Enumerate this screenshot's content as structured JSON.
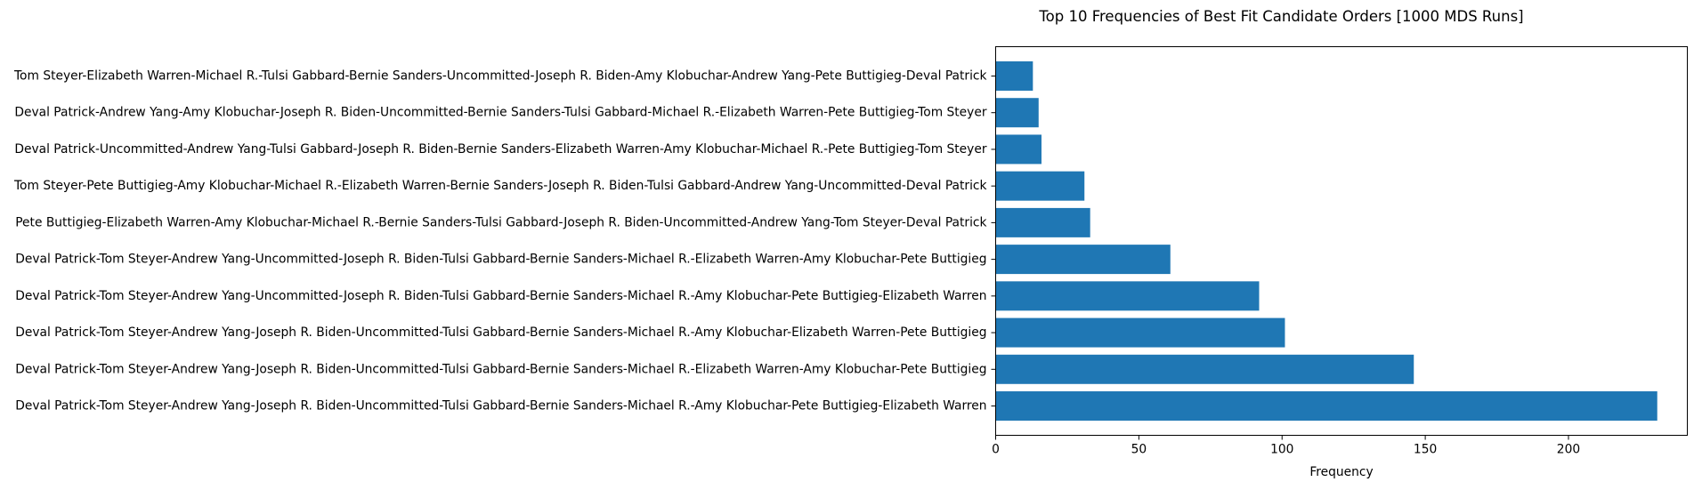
{
  "chart_data": {
    "type": "bar",
    "orientation": "horizontal",
    "title": "Top 10 Frequencies of Best Fit Candidate Orders [1000 MDS Runs]",
    "xlabel": "Frequency",
    "ylabel": "",
    "xlim": [
      0,
      241.5
    ],
    "xticks": [
      0,
      50,
      100,
      150,
      200
    ],
    "grid": false,
    "bar_color": "#1f77b4",
    "categories": [
      "Deval Patrick-Tom Steyer-Andrew Yang-Joseph R. Biden-Uncommitted-Tulsi Gabbard-Bernie Sanders-Michael R.-Amy Klobuchar-Pete Buttigieg-Elizabeth Warren",
      "Deval Patrick-Tom Steyer-Andrew Yang-Joseph R. Biden-Uncommitted-Tulsi Gabbard-Bernie Sanders-Michael R.-Elizabeth Warren-Amy Klobuchar-Pete Buttigieg",
      "Deval Patrick-Tom Steyer-Andrew Yang-Joseph R. Biden-Uncommitted-Tulsi Gabbard-Bernie Sanders-Michael R.-Amy Klobuchar-Elizabeth Warren-Pete Buttigieg",
      "Deval Patrick-Tom Steyer-Andrew Yang-Uncommitted-Joseph R. Biden-Tulsi Gabbard-Bernie Sanders-Michael R.-Amy Klobuchar-Pete Buttigieg-Elizabeth Warren",
      "Deval Patrick-Tom Steyer-Andrew Yang-Uncommitted-Joseph R. Biden-Tulsi Gabbard-Bernie Sanders-Michael R.-Elizabeth Warren-Amy Klobuchar-Pete Buttigieg",
      "Pete Buttigieg-Elizabeth Warren-Amy Klobuchar-Michael R.-Bernie Sanders-Tulsi Gabbard-Joseph R. Biden-Uncommitted-Andrew Yang-Tom Steyer-Deval Patrick",
      "Tom Steyer-Pete Buttigieg-Amy Klobuchar-Michael R.-Elizabeth Warren-Bernie Sanders-Joseph R. Biden-Tulsi Gabbard-Andrew Yang-Uncommitted-Deval Patrick",
      "Deval Patrick-Uncommitted-Andrew Yang-Tulsi Gabbard-Joseph R. Biden-Bernie Sanders-Elizabeth Warren-Amy Klobuchar-Michael R.-Pete Buttigieg-Tom Steyer",
      "Deval Patrick-Andrew Yang-Amy Klobuchar-Joseph R. Biden-Uncommitted-Bernie Sanders-Tulsi Gabbard-Michael R.-Elizabeth Warren-Pete Buttigieg-Tom Steyer",
      "Tom Steyer-Elizabeth Warren-Michael R.-Tulsi Gabbard-Bernie Sanders-Uncommitted-Joseph R. Biden-Amy Klobuchar-Andrew Yang-Pete Buttigieg-Deval Patrick"
    ],
    "values": [
      231,
      146,
      101,
      92,
      61,
      33,
      31,
      16,
      15,
      13
    ]
  }
}
